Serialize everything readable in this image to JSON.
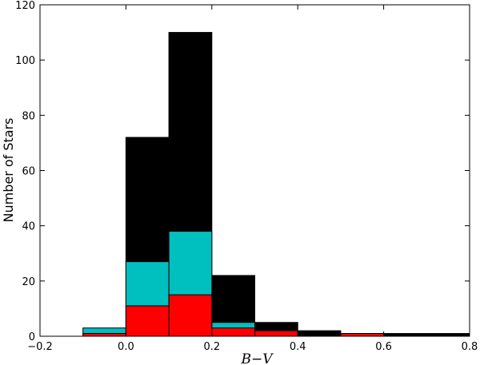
{
  "chart_data": {
    "type": "bar",
    "subtype": "overlaid-histogram",
    "xlabel": "B−V",
    "ylabel": "Number of Stars",
    "xlim": [
      -0.2,
      0.8
    ],
    "ylim": [
      0,
      120
    ],
    "x_ticks": [
      -0.2,
      0.0,
      0.2,
      0.4,
      0.6,
      0.8
    ],
    "x_tick_labels": [
      "−0.2",
      "0.0",
      "0.2",
      "0.4",
      "0.6",
      "0.8"
    ],
    "y_ticks": [
      0,
      20,
      40,
      60,
      80,
      100,
      120
    ],
    "y_tick_labels": [
      "0",
      "20",
      "40",
      "60",
      "80",
      "100",
      "120"
    ],
    "bin_edges": [
      -0.1,
      0.0,
      0.1,
      0.2,
      0.3,
      0.4,
      0.5,
      0.6,
      0.7,
      0.8
    ],
    "grid": false,
    "series": [
      {
        "color": "#000000",
        "values": [
          0,
          72,
          110,
          22,
          5,
          2,
          1,
          1,
          1
        ]
      },
      {
        "color": "#00bfbf",
        "values": [
          3,
          27,
          38,
          5,
          2,
          0,
          0,
          0,
          0
        ]
      },
      {
        "color": "#ff0000",
        "values": [
          1,
          11,
          15,
          3,
          2,
          0,
          1,
          0,
          0
        ]
      }
    ]
  }
}
